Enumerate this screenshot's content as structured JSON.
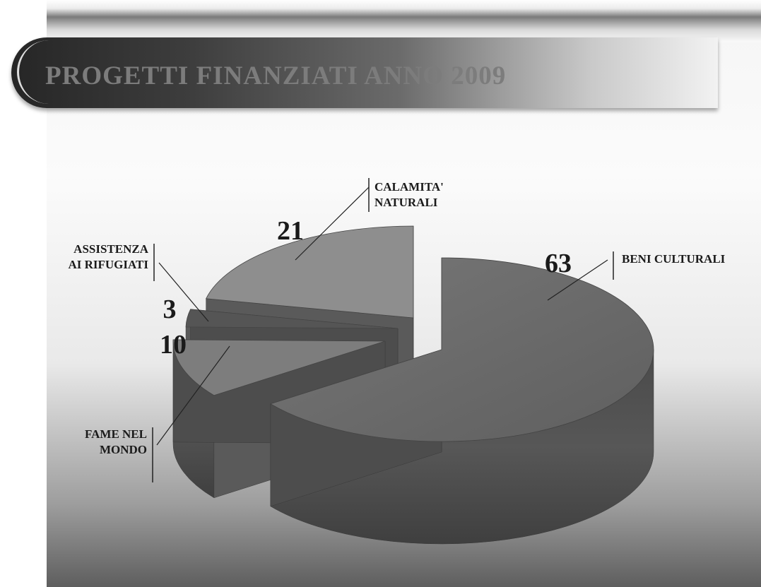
{
  "slide": {
    "title": "PROGETTI FINANZIATI ANNO 2009"
  },
  "chart_data": {
    "type": "pie",
    "title": "PROGETTI FINANZIATI ANNO 2009",
    "categories": [
      "BENI CULTURALI",
      "FAME NEL MONDO",
      "ASSISTENZA AI RIFUGIATI",
      "CALAMITA' NATURALI"
    ],
    "values": [
      63,
      10,
      3,
      21
    ],
    "data_labels": [
      "63",
      "10",
      "3",
      "21"
    ],
    "category_label_lines": [
      [
        "BENI CULTURALI"
      ],
      [
        "FAME NEL",
        "MONDO"
      ],
      [
        "ASSISTENZA",
        "AI RIFUGIATI"
      ],
      [
        "CALAMITA'",
        "NATURALI"
      ]
    ],
    "legend": "none",
    "style": "3d-exploded",
    "colors": [
      "#6a6a6a",
      "#7d7d7d",
      "#555555",
      "#8e8e8e"
    ]
  }
}
